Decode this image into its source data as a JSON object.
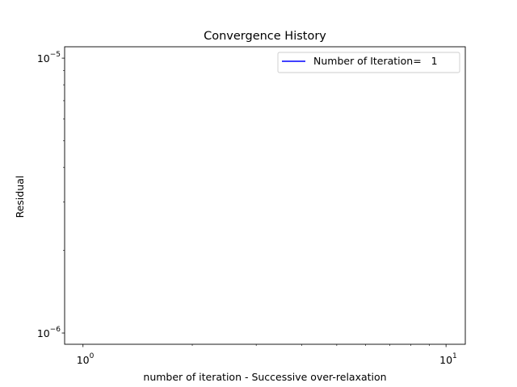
{
  "chart_data": {
    "type": "line",
    "title": "Convergence History",
    "xlabel": "number of iteration - Successive over-relaxation",
    "ylabel": "Residual",
    "xscale": "log",
    "yscale": "log",
    "xlim": [
      0.89,
      11.3
    ],
    "ylim": [
      9.1e-07,
      1.1e-05
    ],
    "grid": false,
    "x_major_ticks": [
      {
        "value": 1,
        "base": "10",
        "exp": "0"
      },
      {
        "value": 10,
        "base": "10",
        "exp": "1"
      }
    ],
    "x_minor_ticks": [
      2,
      3,
      4,
      5,
      6,
      7,
      8,
      9
    ],
    "y_major_ticks": [
      {
        "value": 1e-06,
        "base": "10",
        "exp": "−6"
      },
      {
        "value": 1e-05,
        "base": "10",
        "exp": "−5"
      }
    ],
    "y_minor_ticks": [
      2e-06,
      3e-06,
      4e-06,
      5e-06,
      6e-06,
      7e-06,
      8e-06,
      9e-06
    ],
    "legend_placement": "top-right",
    "series": [
      {
        "name": "Number of Iteration=   1",
        "color": "#0000ff",
        "x": [],
        "y": []
      }
    ]
  }
}
